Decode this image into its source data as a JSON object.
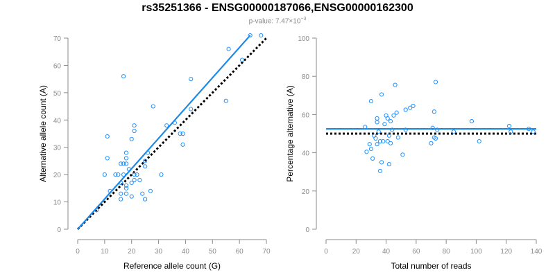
{
  "title": "rs35251366 - ENSG00000187066,ENSG00000162300",
  "subtitle": {
    "prefix": "p-value: 7.47×10",
    "exponent": "−3"
  },
  "colors": {
    "points": "#1e90ff",
    "fit_line": "#1e88e5",
    "reference_line": "#000000",
    "axis": "#8a8a8a"
  },
  "chart_data": [
    {
      "type": "scatter",
      "xlabel": "Reference allele count (G)",
      "ylabel": "Alternative allele count (A)",
      "xlim": [
        0,
        70
      ],
      "ylim": [
        0,
        70
      ],
      "xticks": [
        0,
        10,
        20,
        30,
        40,
        50,
        60,
        70
      ],
      "yticks": [
        0,
        10,
        20,
        30,
        40,
        50,
        60,
        70
      ],
      "points": [
        {
          "x": 7,
          "y": 7
        },
        {
          "x": 10,
          "y": 20
        },
        {
          "x": 11,
          "y": 26
        },
        {
          "x": 11,
          "y": 34
        },
        {
          "x": 12,
          "y": 14
        },
        {
          "x": 14,
          "y": 20
        },
        {
          "x": 15,
          "y": 20
        },
        {
          "x": 16,
          "y": 24
        },
        {
          "x": 16,
          "y": 17
        },
        {
          "x": 16,
          "y": 13
        },
        {
          "x": 16,
          "y": 11
        },
        {
          "x": 17,
          "y": 56
        },
        {
          "x": 17,
          "y": 24
        },
        {
          "x": 17,
          "y": 20
        },
        {
          "x": 18,
          "y": 24
        },
        {
          "x": 18,
          "y": 16
        },
        {
          "x": 18,
          "y": 15
        },
        {
          "x": 18,
          "y": 13
        },
        {
          "x": 18,
          "y": 26
        },
        {
          "x": 18,
          "y": 28
        },
        {
          "x": 19,
          "y": 22
        },
        {
          "x": 20,
          "y": 33
        },
        {
          "x": 20,
          "y": 17
        },
        {
          "x": 20,
          "y": 12
        },
        {
          "x": 21,
          "y": 36
        },
        {
          "x": 21,
          "y": 38
        },
        {
          "x": 21,
          "y": 20
        },
        {
          "x": 21,
          "y": 18
        },
        {
          "x": 22,
          "y": 20
        },
        {
          "x": 23,
          "y": 18
        },
        {
          "x": 24,
          "y": 13
        },
        {
          "x": 25,
          "y": 11
        },
        {
          "x": 25,
          "y": 23
        },
        {
          "x": 25,
          "y": 25
        },
        {
          "x": 26,
          "y": 28
        },
        {
          "x": 27,
          "y": 14
        },
        {
          "x": 28,
          "y": 45
        },
        {
          "x": 31,
          "y": 20
        },
        {
          "x": 33,
          "y": 38
        },
        {
          "x": 36,
          "y": 39
        },
        {
          "x": 38,
          "y": 35
        },
        {
          "x": 39,
          "y": 35
        },
        {
          "x": 39,
          "y": 31
        },
        {
          "x": 42,
          "y": 55
        },
        {
          "x": 42,
          "y": 44
        },
        {
          "x": 55,
          "y": 47
        },
        {
          "x": 56,
          "y": 66
        },
        {
          "x": 61,
          "y": 62
        },
        {
          "x": 64,
          "y": 71
        },
        {
          "x": 68,
          "y": 71
        }
      ],
      "fit_line": {
        "x": [
          0,
          64
        ],
        "y": [
          0,
          71
        ]
      },
      "reference_line": {
        "x": [
          0,
          70
        ],
        "y": [
          0,
          70
        ]
      }
    },
    {
      "type": "scatter",
      "xlabel": "Total number of reads",
      "ylabel": "Percentage alternative (A)",
      "xlim": [
        0,
        140
      ],
      "ylim": [
        0,
        100
      ],
      "xticks": [
        0,
        20,
        40,
        60,
        80,
        100,
        120,
        140
      ],
      "yticks": [
        0,
        20,
        40,
        60,
        80,
        100
      ],
      "points": [
        {
          "x": 26,
          "y": 53.5
        },
        {
          "x": 27,
          "y": 40.5
        },
        {
          "x": 29,
          "y": 44.5
        },
        {
          "x": 30,
          "y": 67
        },
        {
          "x": 30,
          "y": 42
        },
        {
          "x": 31,
          "y": 37
        },
        {
          "x": 32,
          "y": 49
        },
        {
          "x": 33,
          "y": 47.5
        },
        {
          "x": 34,
          "y": 58
        },
        {
          "x": 34,
          "y": 56
        },
        {
          "x": 34,
          "y": 44.5
        },
        {
          "x": 35,
          "y": 51
        },
        {
          "x": 36,
          "y": 46
        },
        {
          "x": 36,
          "y": 30.5
        },
        {
          "x": 37,
          "y": 70.5
        },
        {
          "x": 37,
          "y": 35
        },
        {
          "x": 38,
          "y": 46
        },
        {
          "x": 39,
          "y": 55
        },
        {
          "x": 40,
          "y": 59.5
        },
        {
          "x": 41,
          "y": 58
        },
        {
          "x": 41,
          "y": 46
        },
        {
          "x": 42,
          "y": 49
        },
        {
          "x": 42,
          "y": 34
        },
        {
          "x": 43,
          "y": 56.5
        },
        {
          "x": 43,
          "y": 45
        },
        {
          "x": 44,
          "y": 52
        },
        {
          "x": 45,
          "y": 59.5
        },
        {
          "x": 46,
          "y": 75.5
        },
        {
          "x": 47,
          "y": 61
        },
        {
          "x": 48,
          "y": 48
        },
        {
          "x": 51,
          "y": 39
        },
        {
          "x": 53,
          "y": 62.5
        },
        {
          "x": 53,
          "y": 52
        },
        {
          "x": 56,
          "y": 63.5
        },
        {
          "x": 58,
          "y": 64.5
        },
        {
          "x": 70,
          "y": 45
        },
        {
          "x": 71,
          "y": 53
        },
        {
          "x": 72,
          "y": 48
        },
        {
          "x": 72,
          "y": 61.5
        },
        {
          "x": 73,
          "y": 77
        },
        {
          "x": 73,
          "y": 47.5
        },
        {
          "x": 74,
          "y": 52
        },
        {
          "x": 85,
          "y": 51
        },
        {
          "x": 97,
          "y": 56.5
        },
        {
          "x": 102,
          "y": 46
        },
        {
          "x": 122,
          "y": 54
        },
        {
          "x": 123,
          "y": 51
        },
        {
          "x": 135,
          "y": 52.5
        },
        {
          "x": 138,
          "y": 51
        }
      ],
      "fit_line": {
        "x": [
          0,
          140
        ],
        "y": [
          52.5,
          52.5
        ]
      },
      "reference_line": {
        "x": [
          0,
          140
        ],
        "y": [
          50,
          50
        ]
      }
    }
  ]
}
